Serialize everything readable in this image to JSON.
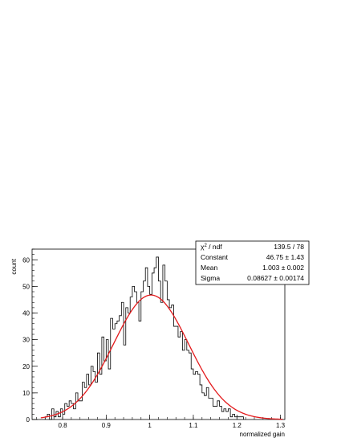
{
  "chart_data": {
    "type": "bar",
    "xlabel": "normalized gain",
    "ylabel": "count",
    "xlim": [
      0.73,
      1.31
    ],
    "ylim": [
      0,
      64
    ],
    "xticks": [
      "0.8",
      "0.9",
      "1",
      "1.1",
      "1.2",
      "1.3"
    ],
    "yticks": [
      "0",
      "10",
      "20",
      "30",
      "40",
      "50",
      "60"
    ],
    "bin_width": 0.005,
    "x_start": 0.76,
    "histogram_values": [
      1,
      2,
      0,
      4,
      1,
      3,
      1,
      4,
      2,
      6,
      5,
      7,
      6,
      4,
      10,
      7,
      7,
      14,
      12,
      17,
      13,
      20,
      18,
      14,
      25,
      17,
      31,
      22,
      30,
      19,
      38,
      34,
      36,
      37,
      39,
      44,
      28,
      42,
      40,
      46,
      50,
      48,
      44,
      37,
      48,
      52,
      57,
      50,
      47,
      55,
      57,
      61,
      52,
      44,
      58,
      52,
      45,
      42,
      43,
      35,
      35,
      31,
      33,
      26,
      30,
      26,
      25,
      19,
      17,
      18,
      17,
      13,
      10,
      9,
      12,
      8,
      8,
      5,
      5,
      7,
      5,
      3,
      4,
      3,
      4,
      1,
      2,
      1,
      1,
      1,
      1
    ],
    "fit": {
      "type": "gaussian",
      "constant": 46.75,
      "mean": 1.003,
      "sigma": 0.08627
    },
    "colors": {
      "histogram": "#000000",
      "fit": "#e31a1c"
    }
  },
  "stats_box": {
    "rows": [
      {
        "label_main": "χ",
        "label_sup": "2",
        "label_rest": " / ndf",
        "value": "139.5 / 78"
      },
      {
        "label": "Constant",
        "value": "46.75 ± 1.43"
      },
      {
        "label": "Mean",
        "value": "1.003 ± 0.002"
      },
      {
        "label": "Sigma",
        "value": "0.08627 ± 0.00174"
      }
    ]
  }
}
